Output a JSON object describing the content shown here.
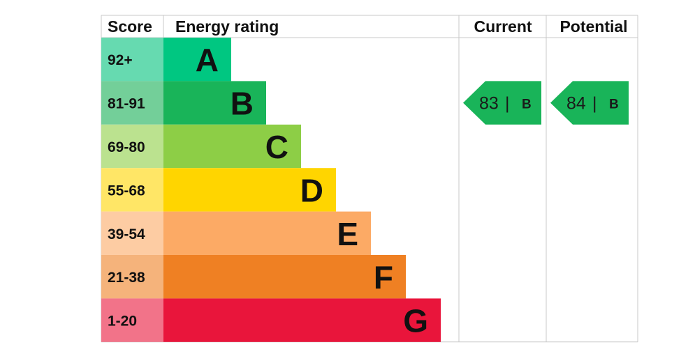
{
  "chart_data": {
    "type": "bar",
    "headers": {
      "score": "Score",
      "rating": "Energy rating",
      "current": "Current",
      "potential": "Potential"
    },
    "bands": [
      {
        "range": "92+",
        "letter": "A",
        "color": "#00c781",
        "score_color": "#66dab0"
      },
      {
        "range": "81-91",
        "letter": "B",
        "color": "#19b459",
        "score_color": "#73cf99"
      },
      {
        "range": "69-80",
        "letter": "C",
        "color": "#8dce46",
        "score_color": "#bbe28f"
      },
      {
        "range": "55-68",
        "letter": "D",
        "color": "#ffd500",
        "score_color": "#ffe666"
      },
      {
        "range": "39-54",
        "letter": "E",
        "color": "#fcaa65",
        "score_color": "#fdcca3"
      },
      {
        "range": "21-38",
        "letter": "F",
        "color": "#ef8023",
        "score_color": "#f5b37b"
      },
      {
        "range": "1-20",
        "letter": "G",
        "color": "#e9153b",
        "score_color": "#f27389"
      }
    ],
    "current": {
      "value": 83,
      "separator": "|",
      "band": "B",
      "color": "#19b459"
    },
    "potential": {
      "value": 84,
      "separator": "|",
      "band": "B",
      "color": "#19b459"
    }
  }
}
